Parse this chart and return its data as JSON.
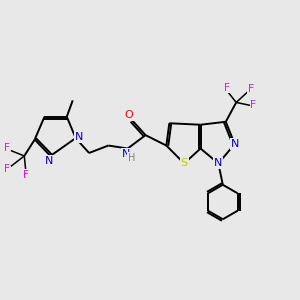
{
  "background_color": "#e8e8e8",
  "bond_color": "#000000",
  "atom_colors": {
    "N": "#0000cd",
    "O": "#ff0000",
    "S": "#cccc00",
    "F": "#ff00ff",
    "C": "#000000",
    "H": "#808080"
  },
  "figsize": [
    3.0,
    3.0
  ],
  "dpi": 100
}
